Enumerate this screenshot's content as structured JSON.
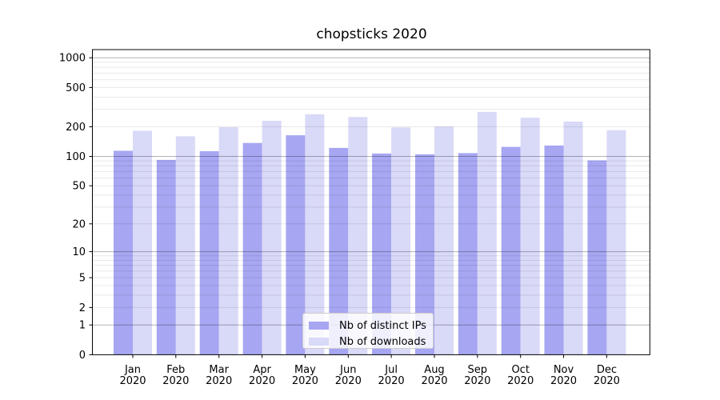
{
  "chart_data": {
    "type": "bar",
    "title": "chopsticks 2020",
    "categories": [
      "Jan 2020",
      "Feb 2020",
      "Mar 2020",
      "Apr 2020",
      "May 2020",
      "Jun 2020",
      "Jul 2020",
      "Aug 2020",
      "Sep 2020",
      "Oct 2020",
      "Nov 2020",
      "Dec 2020"
    ],
    "series": [
      {
        "name": "Nb of distinct IPs",
        "color": "#a6a6f2",
        "values": [
          114,
          92,
          113,
          137,
          164,
          122,
          107,
          105,
          108,
          125,
          129,
          91
        ]
      },
      {
        "name": "Nb of downloads",
        "color": "#d9d9f8",
        "values": [
          182,
          160,
          198,
          230,
          268,
          251,
          197,
          201,
          283,
          247,
          226,
          185
        ]
      }
    ],
    "xlabel": "",
    "ylabel": "",
    "yscale": "log1p",
    "y_ticks": [
      0,
      1,
      2,
      5,
      10,
      20,
      50,
      100,
      200,
      500,
      1000
    ],
    "y_major_gridlines": [
      1,
      10,
      100,
      1000
    ],
    "ylim": [
      0,
      1200
    ],
    "grid": true,
    "legend_position": "lower center",
    "colors": {
      "background": "#ffffff",
      "spine": "#000000",
      "major_grid": "rgba(0,0,0,0.30)",
      "minor_grid": "rgba(0,0,0,0.09)"
    }
  }
}
